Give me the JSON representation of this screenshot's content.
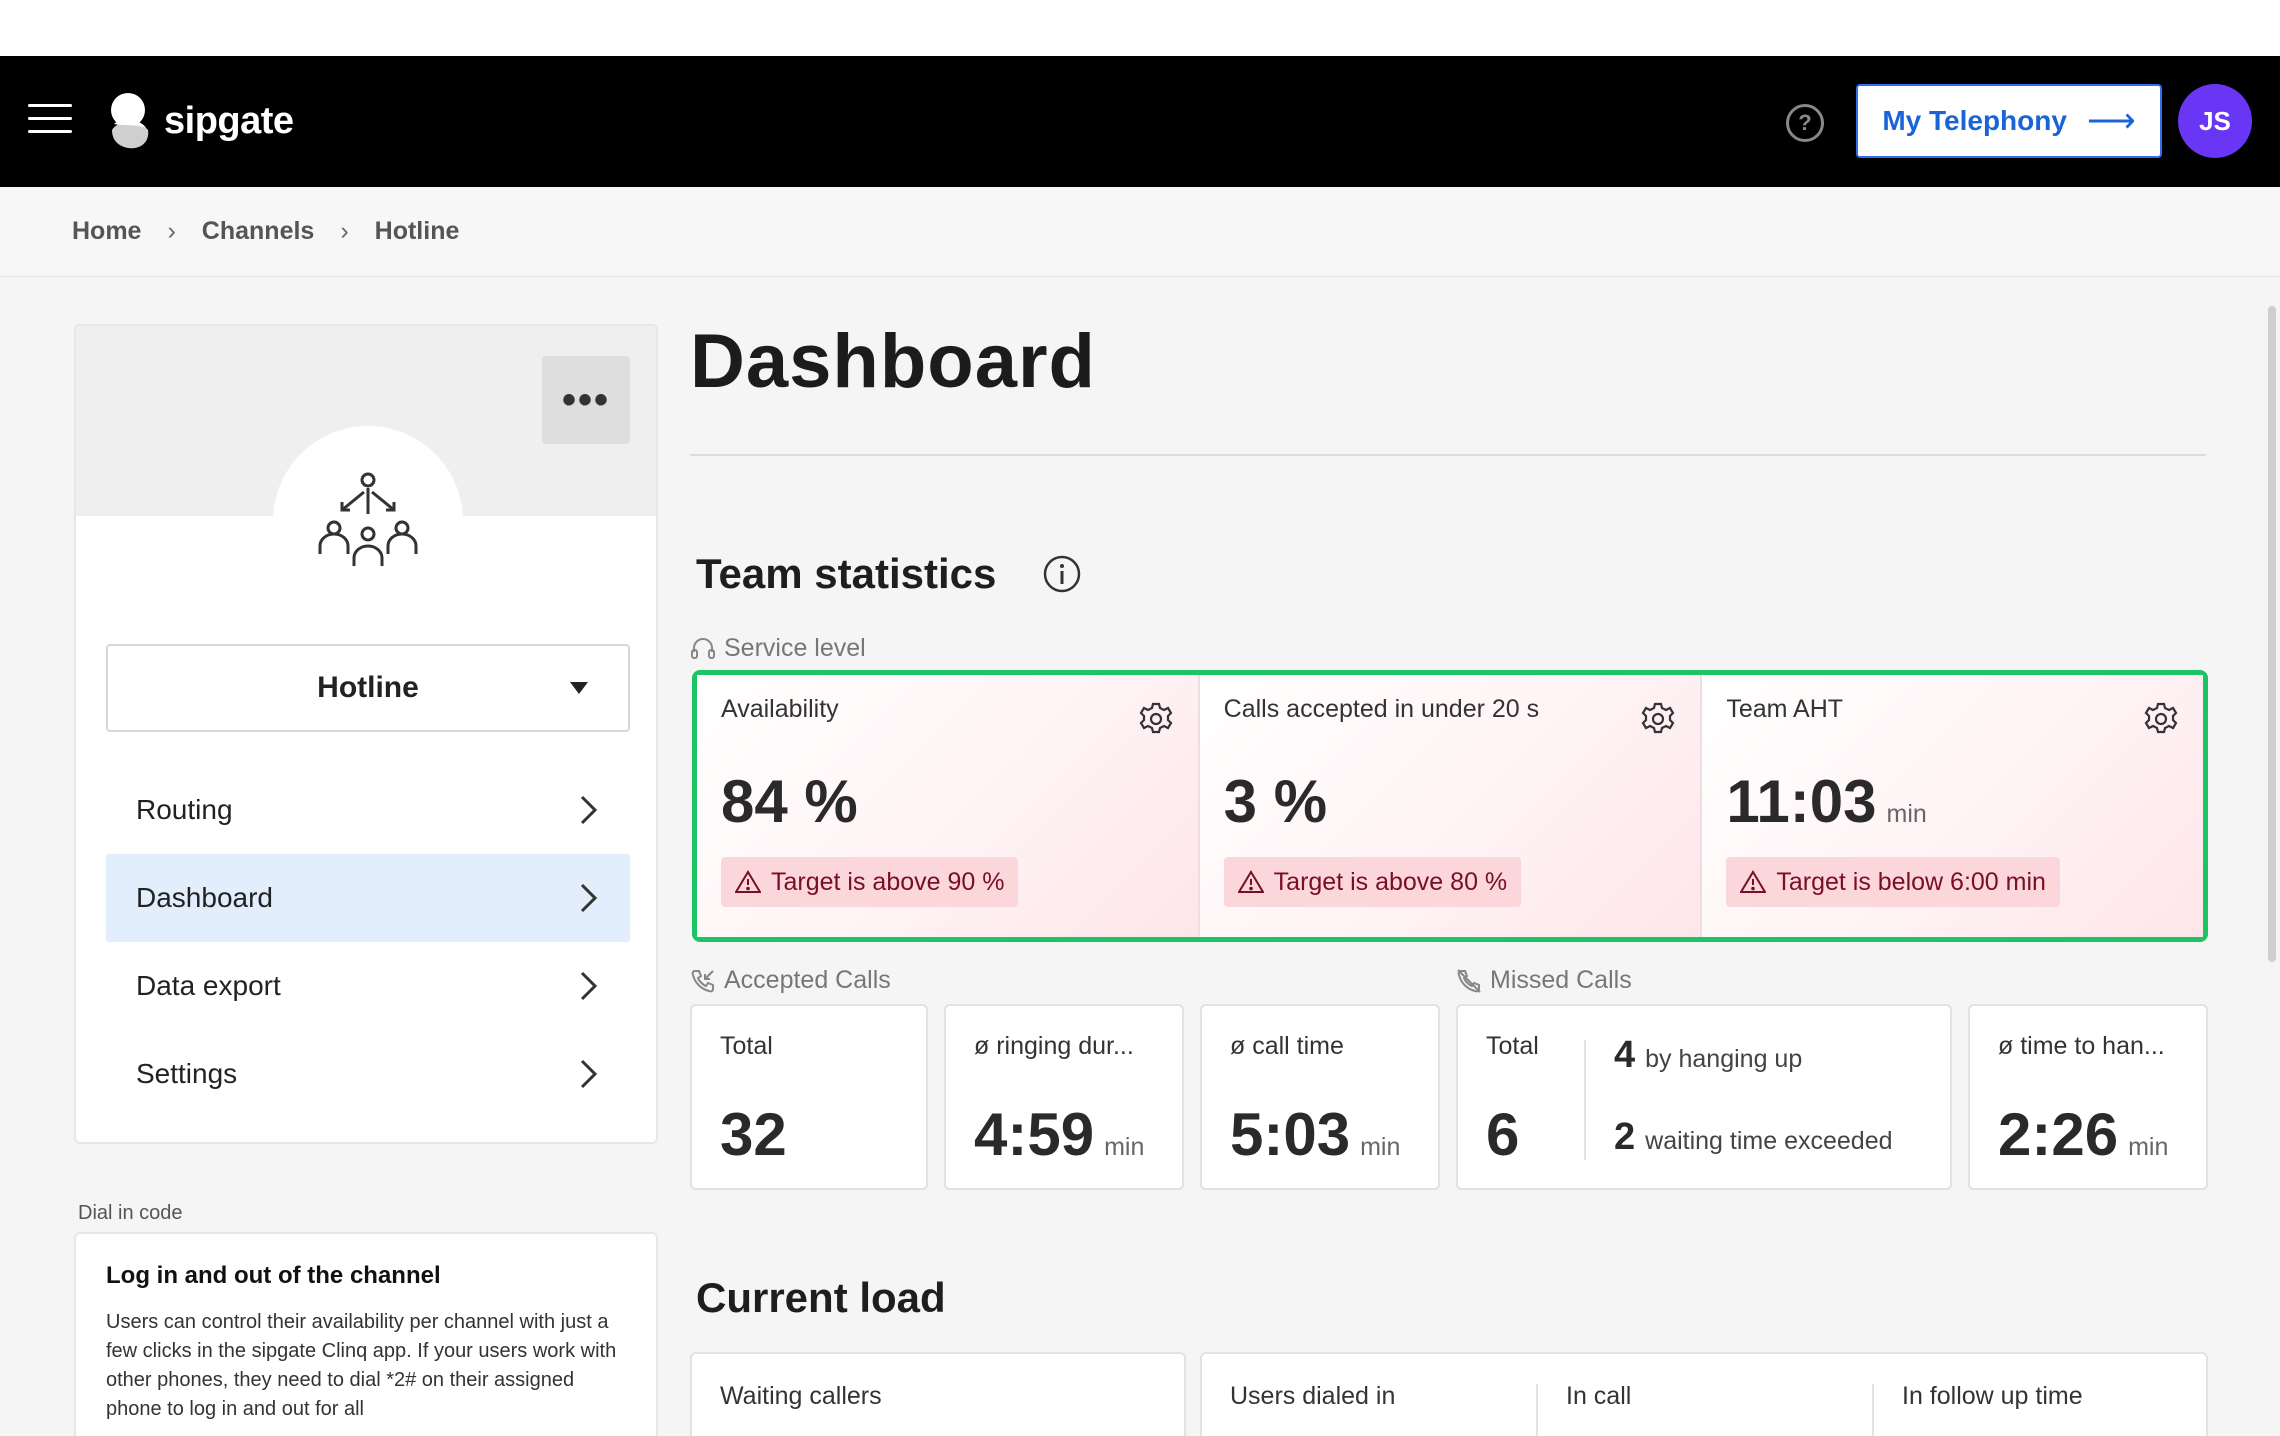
{
  "brand": {
    "name": "sipgate"
  },
  "topbar": {
    "help_glyph": "?",
    "telephony_label": "My Telephony",
    "avatar_initials": "JS"
  },
  "breadcrumb": [
    "Home",
    "Channels",
    "Hotline"
  ],
  "sidebar": {
    "more_glyph": "•••",
    "channel_name": "Hotline",
    "items": [
      {
        "label": "Routing",
        "active": false
      },
      {
        "label": "Dashboard",
        "active": true
      },
      {
        "label": "Data export",
        "active": false
      },
      {
        "label": "Settings",
        "active": false
      }
    ],
    "dial_in": {
      "label": "Dial in code",
      "title": "Log in and out of the channel",
      "text": "Users can control their availability per channel with just a few clicks in the sipgate Clinq app. If your users work with other phones, they need to dial *2# on their assigned phone to log in and out for all"
    }
  },
  "main": {
    "title": "Dashboard",
    "team_statistics": {
      "title": "Team statistics",
      "service_level": {
        "label": "Service level",
        "cards": [
          {
            "label": "Availability",
            "value": "84 %",
            "unit": "",
            "warning": "Target is above 90 %"
          },
          {
            "label": "Calls accepted in under 20 s",
            "value": "3 %",
            "unit": "",
            "warning": "Target is above 80 %"
          },
          {
            "label": "Team AHT",
            "value": "11:03",
            "unit": "min",
            "warning": "Target is below 6:00 min"
          }
        ]
      },
      "accepted_calls": {
        "label": "Accepted Calls",
        "cards": [
          {
            "label": "Total",
            "value": "32",
            "unit": ""
          },
          {
            "label": "ø ringing dur...",
            "value": "4:59",
            "unit": "min"
          },
          {
            "label": "ø call time",
            "value": "5:03",
            "unit": "min"
          }
        ]
      },
      "missed_calls": {
        "label": "Missed Calls",
        "total_label": "Total",
        "total_value": "6",
        "breakdown": [
          {
            "count": "4",
            "text": "by hanging up"
          },
          {
            "count": "2",
            "text": "waiting time exceeded"
          }
        ],
        "time_to_hangup": {
          "label": "ø time to han...",
          "value": "2:26",
          "unit": "min"
        }
      }
    },
    "current_load": {
      "title": "Current load",
      "waiting_callers_label": "Waiting callers",
      "users": [
        "Users dialed in",
        "In call",
        "In follow up time"
      ]
    }
  },
  "colors": {
    "accent": "#1cc463",
    "primary": "#2f6ef0",
    "avatar": "#6a36f6",
    "warning_bg": "#fbd7dc",
    "warning_text": "#7a0e22"
  }
}
